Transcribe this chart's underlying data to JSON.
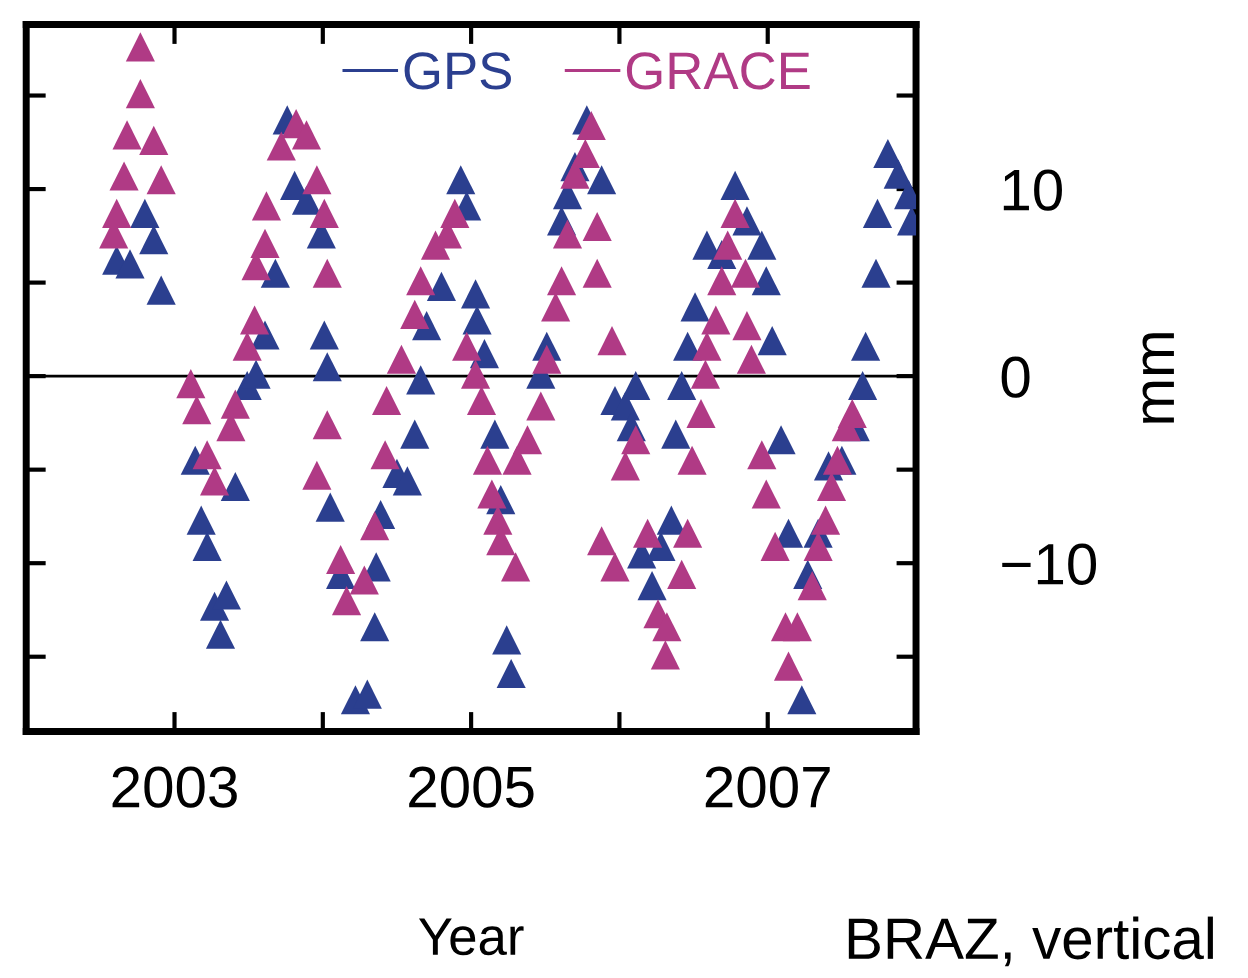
{
  "chart_data": {
    "type": "scatter",
    "xlabel": "Year",
    "ylabel": "mm",
    "annotations": [
      "BRAZ, vertical"
    ],
    "xlim": [
      2002,
      2008
    ],
    "ylim": [
      -19,
      18.8
    ],
    "xticks": [
      {
        "value": 2003,
        "label": "2003"
      },
      {
        "value": 2004,
        "label": null
      },
      {
        "value": 2005,
        "label": "2005"
      },
      {
        "value": 2006,
        "label": null
      },
      {
        "value": 2007,
        "label": "2007"
      }
    ],
    "yticks": [
      {
        "value": -15,
        "label": null
      },
      {
        "value": -10,
        "label": "−10"
      },
      {
        "value": -5,
        "label": null
      },
      0,
      {
        "value": 5,
        "label": null
      },
      10,
      {
        "value": 15,
        "label": null
      }
    ],
    "ref_lines": [
      {
        "axis": "y",
        "value": 0,
        "color": "#000000"
      }
    ],
    "marker": "triangle",
    "legend": "top",
    "grid": false,
    "series": [
      {
        "name": "GPS",
        "color": "#2b3f8f",
        "x": [
          2002.61,
          2002.7,
          2002.8,
          2002.86,
          2002.91,
          2003.14,
          2003.18,
          2003.22,
          2003.27,
          2003.31,
          2003.35,
          2003.41,
          2003.49,
          2003.55,
          2003.61,
          2003.68,
          2003.76,
          2003.81,
          2003.89,
          2003.99,
          2004.01,
          2004.03,
          2004.05,
          2004.12,
          2004.22,
          2004.3,
          2004.35,
          2004.36,
          2004.39,
          2004.5,
          2004.57,
          2004.62,
          2004.66,
          2004.7,
          2004.8,
          2004.93,
          2004.97,
          2005.03,
          2005.04,
          2005.09,
          2005.16,
          2005.2,
          2005.24,
          2005.27,
          2005.47,
          2005.51,
          2005.61,
          2005.65,
          2005.7,
          2005.78,
          2005.88,
          2005.97,
          2006.04,
          2006.08,
          2006.11,
          2006.15,
          2006.22,
          2006.28,
          2006.35,
          2006.38,
          2006.42,
          2006.46,
          2006.51,
          2006.59,
          2006.69,
          2006.78,
          2006.86,
          2006.96,
          2006.99,
          2007.03,
          2007.09,
          2007.14,
          2007.23,
          2007.27,
          2007.34,
          2007.41,
          2007.5,
          2007.59,
          2007.64,
          2007.66,
          2007.73,
          2007.74,
          2007.81,
          2007.88,
          2007.95,
          2007.97
        ],
        "values": [
          6.2,
          6.0,
          8.7,
          7.3,
          4.6,
          -4.5,
          -7.7,
          -9.1,
          -12.3,
          -13.8,
          -11.7,
          -5.9,
          -0.5,
          0.1,
          2.2,
          5.5,
          13.7,
          10.2,
          9.4,
          7.6,
          2.2,
          0.5,
          -7.0,
          -10.6,
          -17.3,
          -17.0,
          -13.4,
          -10.2,
          -7.4,
          -5.2,
          -5.6,
          -3.1,
          -0.2,
          2.7,
          4.8,
          10.5,
          9.1,
          4.4,
          3.0,
          1.2,
          -3.1,
          -6.6,
          -14.1,
          -15.9,
          0.1,
          1.6,
          8.3,
          9.7,
          11.2,
          13.7,
          10.5,
          -1.3,
          -1.6,
          -2.7,
          -0.5,
          -9.5,
          -11.2,
          -9.1,
          -7.7,
          -3.1,
          -0.5,
          1.6,
          3.7,
          7.0,
          6.5,
          10.2,
          8.3,
          7.0,
          5.1,
          1.9,
          -3.4,
          -8.4,
          -17.3,
          -10.6,
          -8.4,
          -4.8,
          -4.5,
          -2.7,
          -0.5,
          1.6,
          5.5,
          8.7,
          11.9,
          10.8,
          9.7,
          8.3
        ]
      },
      {
        "name": "GRACE",
        "color": "#b03a85",
        "x": [
          2002.77,
          2002.77,
          2002.68,
          2002.86,
          2002.66,
          2002.91,
          2002.61,
          2002.59,
          2003.11,
          2003.15,
          2003.22,
          2003.27,
          2003.38,
          2003.41,
          2003.49,
          2003.54,
          2003.55,
          2003.61,
          2003.62,
          2003.72,
          2003.82,
          2003.89,
          2003.96,
          2004.01,
          2004.03,
          2004.03,
          2003.96,
          2004.12,
          2004.16,
          2004.28,
          2004.35,
          2004.42,
          2004.43,
          2004.53,
          2004.62,
          2004.66,
          2004.76,
          2004.84,
          2004.89,
          2004.97,
          2005.03,
          2005.07,
          2005.11,
          2005.14,
          2005.18,
          2005.2,
          2005.3,
          2005.31,
          2005.38,
          2005.47,
          2005.51,
          2005.57,
          2005.61,
          2005.65,
          2005.7,
          2005.77,
          2005.81,
          2005.85,
          2005.85,
          2005.95,
          2005.88,
          2005.97,
          2006.04,
          2006.11,
          2006.19,
          2006.26,
          2006.31,
          2006.32,
          2006.42,
          2006.49,
          2006.46,
          2006.55,
          2006.58,
          2006.59,
          2006.65,
          2006.69,
          2006.73,
          2006.78,
          2006.85,
          2006.86,
          2006.89,
          2006.96,
          2006.99,
          2007.05,
          2007.12,
          2007.14,
          2007.2,
          2007.3,
          2007.34,
          2007.39,
          2007.43,
          2007.47,
          2007.53,
          2007.57
        ],
        "values": [
          17.6,
          15.1,
          12.9,
          12.6,
          10.7,
          10.5,
          8.7,
          7.6,
          -0.4,
          -1.8,
          -4.2,
          -5.6,
          -2.7,
          -1.5,
          1.6,
          3.0,
          5.9,
          7.1,
          9.1,
          12.3,
          13.5,
          12.9,
          10.5,
          8.7,
          5.5,
          -2.6,
          -5.3,
          -9.8,
          -12.0,
          -10.9,
          -8.0,
          -4.2,
          -1.3,
          0.9,
          3.3,
          5.1,
          7.0,
          7.6,
          8.7,
          1.6,
          0.1,
          -1.3,
          -4.5,
          -6.3,
          -7.7,
          -8.8,
          -10.2,
          -4.5,
          -3.4,
          -1.6,
          0.9,
          3.7,
          5.1,
          7.6,
          10.8,
          11.9,
          13.4,
          8.0,
          5.5,
          1.9,
          -8.8,
          -10.2,
          -4.8,
          -3.4,
          -8.4,
          -12.7,
          -14.9,
          -13.4,
          -10.6,
          -4.5,
          -8.4,
          -2.0,
          0.1,
          1.6,
          3.0,
          5.1,
          7.0,
          8.7,
          5.5,
          2.7,
          0.9,
          -4.2,
          -6.3,
          -9.1,
          -13.4,
          -15.5,
          -13.4,
          -11.2,
          -9.1,
          -7.7,
          -5.9,
          -4.5,
          -2.7,
          -2.0
        ]
      }
    ]
  }
}
